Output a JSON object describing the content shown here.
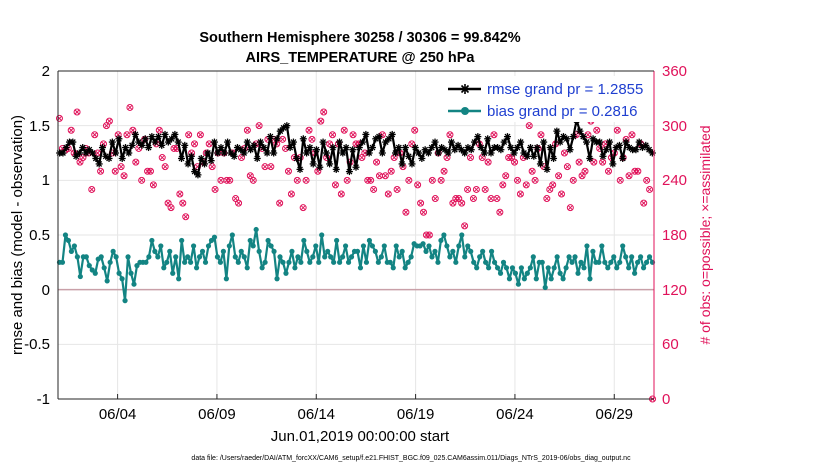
{
  "chart_data": {
    "type": "line",
    "title": [
      "Southern Hemisphere 30258 / 30306 = 99.842%",
      "AIRS_TEMPERATURE @ 250 hPa"
    ],
    "xlabel": "Jun.01,2019 00:00:00 start",
    "ylabel": "rmse and bias (model - observation)",
    "ylabel_right": "# of obs: o=possible; ×=assimilated",
    "footnote": "data file: /Users/raeder/DAI/ATM_forcXX/CAM6_setup/f.e21.FHIST_BGC.f09_025.CAM6assim.011/Diags_NTrS_2019-06/obs_diag_output.nc",
    "x_range_days": [
      0.5,
      30.5
    ],
    "ylim": [
      -1,
      2
    ],
    "ylim_right": [
      0,
      360
    ],
    "y_ticks": [
      "-1",
      "-0.5",
      "0",
      "0.5",
      "1",
      "1.5",
      "2"
    ],
    "y_ticks_right": [
      "0",
      "60",
      "120",
      "180",
      "240",
      "300",
      "360"
    ],
    "x_ticks": [
      {
        "label": "06/04",
        "day": 3.5
      },
      {
        "label": "06/09",
        "day": 8.5
      },
      {
        "label": "06/14",
        "day": 13.5
      },
      {
        "label": "06/19",
        "day": 18.5
      },
      {
        "label": "06/24",
        "day": 23.5
      },
      {
        "label": "06/29",
        "day": 28.5
      }
    ],
    "series": [
      {
        "name": "rmse grand pr = 1.2855",
        "color": "#000000",
        "marker": "asterisk",
        "values": [
          1.25,
          1.25,
          1.3,
          1.35,
          1.35,
          1.22,
          1.25,
          1.3,
          1.25,
          1.28,
          1.25,
          1.2,
          1.15,
          1.3,
          1.22,
          1.2,
          1.35,
          1.25,
          1.38,
          1.2,
          1.3,
          1.25,
          1.32,
          1.42,
          1.35,
          1.32,
          1.38,
          1.3,
          1.4,
          1.35,
          1.4,
          1.32,
          1.42,
          1.35,
          1.38,
          1.42,
          1.35,
          1.2,
          1.32,
          1.15,
          1.22,
          1.08,
          1.05,
          1.2,
          1.15,
          1.25,
          1.18,
          1.35,
          1.25,
          1.3,
          1.25,
          1.35,
          1.25,
          1.22,
          1.3,
          1.28,
          1.25,
          1.35,
          1.28,
          1.32,
          1.2,
          1.35,
          1.3,
          1.25,
          1.4,
          1.25,
          1.38,
          1.45,
          1.48,
          1.5,
          1.3,
          1.35,
          1.2,
          1.1,
          1.38,
          1.25,
          1.3,
          1.15,
          1.28,
          1.12,
          1.35,
          1.25,
          1.15,
          1.3,
          1.1,
          1.35,
          1.25,
          1.3,
          1.08,
          1.28,
          1.12,
          1.3,
          1.35,
          1.42,
          1.25,
          1.3,
          1.38,
          1.4,
          1.25,
          1.35,
          1.38,
          1.42,
          1.25,
          1.3,
          1.15,
          1.3,
          1.22,
          1.15,
          1.3,
          1.25,
          1.2,
          1.28,
          1.25,
          1.3,
          1.35,
          1.25,
          1.3,
          1.28,
          1.25,
          1.35,
          1.28,
          1.32,
          1.28,
          1.25,
          1.3,
          1.28,
          1.35,
          1.4,
          1.3,
          1.25,
          1.38,
          1.25,
          1.3,
          1.3,
          1.28,
          1.35,
          1.4,
          1.3,
          1.25,
          1.3,
          1.35,
          1.25,
          1.22,
          1.3,
          1.22,
          1.3,
          1.15,
          1.35,
          1.1,
          1.3,
          1.2,
          1.45,
          1.35,
          1.4,
          1.38,
          1.28,
          1.4,
          1.55,
          1.45,
          1.4,
          1.35,
          1.2,
          1.38,
          1.35,
          1.35,
          1.22,
          1.28,
          1.35,
          1.15,
          1.3,
          1.32,
          1.2,
          1.35,
          1.3,
          1.28,
          1.28,
          1.35,
          1.3,
          1.32,
          1.28,
          1.25
        ]
      },
      {
        "name": "bias grand pr = 0.2816",
        "color": "#138483",
        "marker": "circle",
        "values": [
          0.25,
          0.25,
          0.5,
          0.45,
          0.35,
          0.4,
          0.3,
          0.12,
          0.3,
          0.3,
          0.22,
          0.18,
          0.15,
          0.28,
          0.3,
          0.2,
          0.08,
          0.25,
          0.35,
          0.3,
          0.15,
          0.1,
          -0.1,
          0.3,
          0.15,
          0.05,
          0.22,
          0.25,
          0.25,
          0.25,
          0.3,
          0.45,
          0.35,
          0.3,
          0.4,
          0.2,
          0.25,
          0.35,
          0.15,
          0.3,
          0.1,
          0.45,
          0.25,
          0.3,
          0.25,
          0.4,
          0.2,
          0.3,
          0.35,
          0.25,
          0.4,
          0.45,
          0.48,
          0.3,
          0.25,
          0.35,
          0.1,
          0.4,
          0.5,
          0.3,
          0.25,
          0.35,
          0.3,
          0.2,
          0.45,
          0.4,
          0.55,
          0.35,
          0.2,
          0.25,
          0.45,
          0.4,
          0.35,
          0.1,
          0.3,
          0.25,
          0.15,
          0.25,
          0.35,
          0.2,
          0.3,
          0.25,
          0.45,
          0.35,
          0.25,
          0.3,
          0.4,
          0.25,
          0.5,
          0.3,
          0.35,
          0.3,
          0.25,
          0.45,
          0.25,
          0.3,
          0.4,
          0.25,
          0.3,
          0.35,
          0.35,
          0.2,
          0.4,
          0.25,
          0.45,
          0.4,
          0.35,
          0.25,
          0.3,
          0.4,
          0.25,
          0.25,
          0.2,
          0.4,
          0.3,
          0.35,
          0.2,
          0.25,
          0.3,
          0.42,
          0.4,
          0.4,
          0.42,
          0.35,
          0.4,
          0.3,
          0.35,
          0.25,
          0.45,
          0.5,
          0.4,
          0.3,
          0.35,
          0.25,
          0.4,
          0.5,
          0.3,
          0.4,
          0.35,
          0.25,
          0.2,
          0.3,
          0.35,
          0.25,
          0.2,
          0.35,
          0.25,
          0.2,
          0.15,
          0.25,
          0.2,
          0.1,
          0.2,
          0.15,
          0.05,
          0.2,
          0.1,
          0.15,
          0.2,
          0.3,
          0.1,
          0.25,
          0.25,
          0.02,
          0.2,
          0.1,
          0.2,
          0.3,
          0.15,
          0.1,
          0.2,
          0.3,
          0.25,
          0.3,
          0.15,
          0.25,
          0.2,
          0.4,
          0.1,
          0.35,
          0.25,
          0.25,
          0.4,
          0.25,
          0.2,
          0.25,
          0.3,
          0.2,
          0.25,
          0.4,
          0.3,
          0.2,
          0.3,
          0.15,
          0.25,
          0.3,
          0.2,
          0.25,
          0.3,
          0.25
        ]
      }
    ],
    "obs_count": {
      "name": "# of obs",
      "color": "#e0125a",
      "values": [
        308,
        275,
        273,
        275,
        295,
        270,
        315,
        260,
        265,
        275,
        270,
        230,
        290,
        270,
        250,
        280,
        300,
        305,
        270,
        250,
        290,
        255,
        245,
        290,
        320,
        295,
        260,
        275,
        240,
        285,
        250,
        250,
        235,
        280,
        295,
        265,
        255,
        215,
        210,
        275,
        275,
        225,
        215,
        200,
        290,
        270,
        280,
        255,
        290,
        260,
        270,
        280,
        255,
        230,
        270,
        240,
        270,
        240,
        240,
        270,
        220,
        215,
        265,
        275,
        295,
        245,
        240,
        280,
        300,
        275,
        255,
        285,
        255,
        285,
        280,
        215,
        285,
        275,
        250,
        225,
        265,
        240,
        265,
        210,
        240,
        295,
        285,
        270,
        250,
        305,
        315,
        265,
        280,
        290,
        235,
        280,
        225,
        295,
        240,
        260,
        290,
        280,
        280,
        265,
        270,
        240,
        240,
        230,
        260,
        245,
        290,
        245,
        225,
        250,
        265,
        230,
        270,
        255,
        205,
        240,
        280,
        295,
        235,
        215,
        205,
        180,
        180,
        240,
        220,
        270,
        240,
        250,
        265,
        290,
        215,
        220,
        220,
        215,
        190,
        230,
        265,
        220,
        230,
        280,
        265,
        230,
        260,
        220,
        290,
        220,
        205,
        235,
        245,
        265,
        265,
        260,
        240,
        225,
        265,
        235,
        300,
        250,
        240,
        275,
        290,
        255,
        220,
        230,
        235,
        280,
        245,
        225,
        270,
        255,
        210,
        240,
        290,
        260,
        245,
        250,
        290,
        305,
        260,
        295,
        275,
        260,
        280,
        250,
        265,
        270,
        295,
        240,
        265,
        285,
        245,
        290,
        250,
        250,
        280,
        215,
        240,
        230,
        0
      ]
    }
  },
  "legend": {
    "rmse": "rmse grand pr = 1.2855",
    "bias": "bias grand pr = 0.2816"
  }
}
